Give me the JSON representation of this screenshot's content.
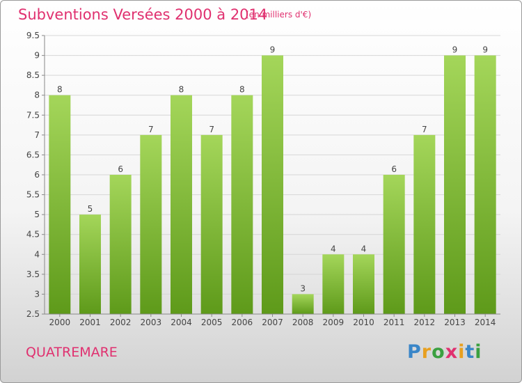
{
  "header": {
    "title": "Subventions Versées 2000 à 2014",
    "subtitle": "(en milliers d'€)"
  },
  "footer": {
    "commune": "QUATREMARE",
    "logo": {
      "letters": [
        "P",
        "r",
        "o",
        "x",
        "i",
        "t",
        "i"
      ],
      "colors": [
        "#3a86c8",
        "#e8a020",
        "#3aa040",
        "#e0306f",
        "#e8a020",
        "#3a86c8",
        "#3aa040"
      ]
    }
  },
  "chart_data": {
    "type": "bar",
    "categories": [
      "2000",
      "2001",
      "2002",
      "2003",
      "2004",
      "2005",
      "2006",
      "2007",
      "2008",
      "2009",
      "2010",
      "2011",
      "2012",
      "2013",
      "2014"
    ],
    "values": [
      8,
      5,
      6,
      7,
      8,
      7,
      8,
      9,
      3,
      4,
      4,
      6,
      7,
      9,
      9
    ],
    "value_labels": [
      "8",
      "5",
      "6",
      "7",
      "8",
      "7",
      "8",
      "9",
      "3",
      "4",
      "4",
      "6",
      "7",
      "9",
      "9"
    ],
    "ylim": [
      2.5,
      9.5
    ],
    "yticks": [
      2.5,
      3,
      3.5,
      4,
      4.5,
      5,
      5.5,
      6,
      6.5,
      7,
      7.5,
      8,
      8.5,
      9,
      9.5
    ],
    "ytick_labels": [
      "2.5",
      "3",
      "3.5",
      "4",
      "4.5",
      "5",
      "5.5",
      "6",
      "6.5",
      "7",
      "7.5",
      "8",
      "8.5",
      "9",
      "9.5"
    ],
    "grid": true,
    "bar_color_top": "#a4d65a",
    "bar_color_bottom": "#5e9a1a"
  }
}
